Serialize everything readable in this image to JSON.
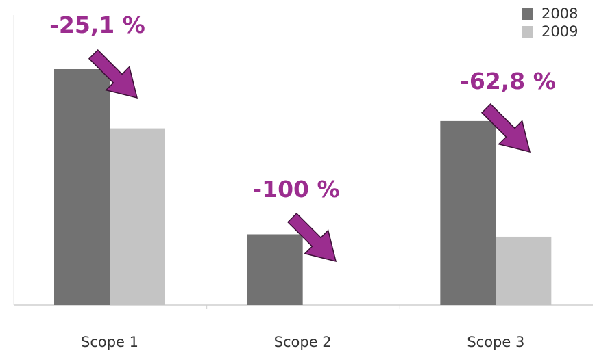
{
  "chart_data": {
    "type": "bar",
    "title": "",
    "xlabel": "",
    "ylabel": "",
    "categories": [
      "Scope 1",
      "Scope 2",
      "Scope 3"
    ],
    "series": [
      {
        "name": "2008",
        "values": [
          100,
          30,
          78
        ],
        "color": "#727272"
      },
      {
        "name": "2009",
        "values": [
          74.9,
          0,
          29
        ],
        "color": "#c4c4c4"
      }
    ],
    "ylim": [
      0,
      115
    ],
    "grid": false,
    "legend_position": "top-right",
    "annotations": [
      {
        "category": "Scope 1",
        "text": "-25,1 %"
      },
      {
        "category": "Scope 2",
        "text": "-100 %"
      },
      {
        "category": "Scope 3",
        "text": "-62,8 %"
      }
    ],
    "annotation_color": "#9b2d8f"
  }
}
